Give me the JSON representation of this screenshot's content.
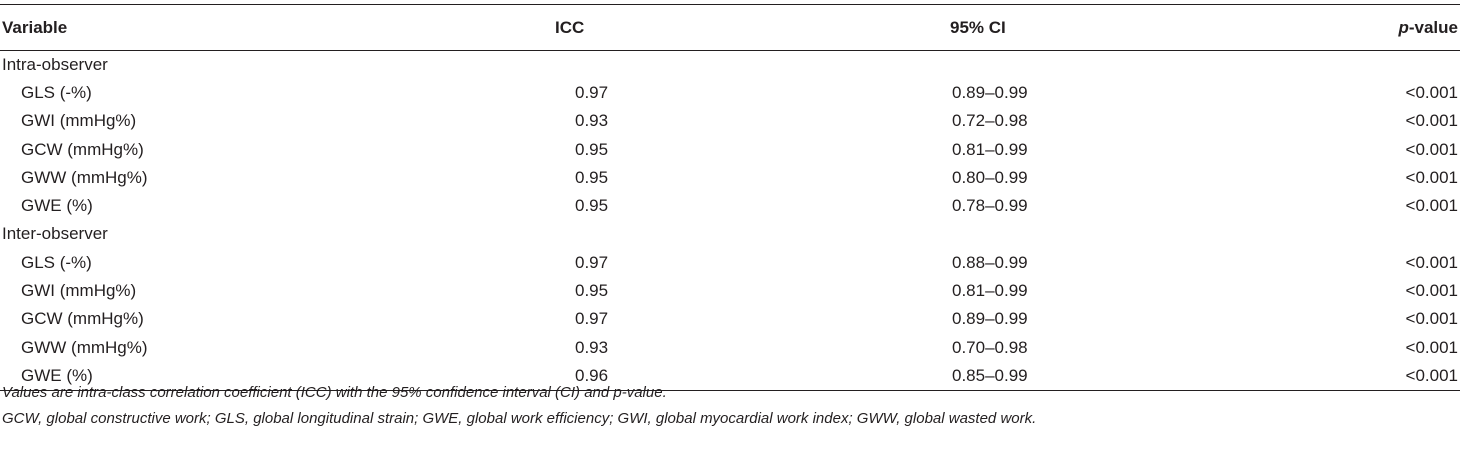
{
  "table": {
    "headers": {
      "variable": "Variable",
      "icc": "ICC",
      "ci": "95% CI",
      "p_italic": "p",
      "p_rest": "-value"
    },
    "groups": [
      {
        "label": "Intra-observer",
        "rows": [
          {
            "variable": "GLS (-%)",
            "icc": "0.97",
            "ci": "0.89–0.99",
            "p": "<0.001"
          },
          {
            "variable": "GWI (mmHg%)",
            "icc": "0.93",
            "ci": "0.72–0.98",
            "p": "<0.001"
          },
          {
            "variable": "GCW (mmHg%)",
            "icc": "0.95",
            "ci": "0.81–0.99",
            "p": "<0.001"
          },
          {
            "variable": "GWW (mmHg%)",
            "icc": "0.95",
            "ci": "0.80–0.99",
            "p": "<0.001"
          },
          {
            "variable": "GWE (%)",
            "icc": "0.95",
            "ci": "0.78–0.99",
            "p": "<0.001"
          }
        ]
      },
      {
        "label": "Inter-observer",
        "rows": [
          {
            "variable": "GLS (-%)",
            "icc": "0.97",
            "ci": "0.88–0.99",
            "p": "<0.001"
          },
          {
            "variable": "GWI (mmHg%)",
            "icc": "0.95",
            "ci": "0.81–0.99",
            "p": "<0.001"
          },
          {
            "variable": "GCW (mmHg%)",
            "icc": "0.97",
            "ci": "0.89–0.99",
            "p": "<0.001"
          },
          {
            "variable": "GWW (mmHg%)",
            "icc": "0.93",
            "ci": "0.70–0.98",
            "p": "<0.001"
          },
          {
            "variable": "GWE (%)",
            "icc": "0.96",
            "ci": "0.85–0.99",
            "p": "<0.001"
          }
        ]
      }
    ]
  },
  "notes": {
    "line1": "Values are intra-class correlation coefficient (ICC) with the 95% confidence interval (CI) and p-value.",
    "line2": "GCW, global constructive work; GLS, global longitudinal strain; GWE, global work efficiency; GWI, global myocardial work index; GWW, global wasted work."
  }
}
